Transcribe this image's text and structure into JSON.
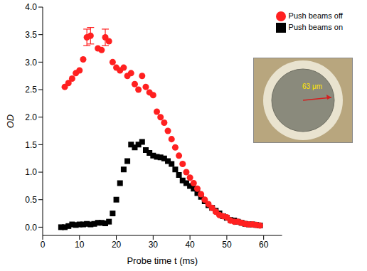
{
  "chart_data": {
    "type": "scatter",
    "x_label": "Probe time t (ms)",
    "y_label": "OD",
    "xlim": [
      0,
      65
    ],
    "xticks": [
      0,
      10,
      20,
      30,
      40,
      50,
      60
    ],
    "ylim": [
      -0.15,
      4.0
    ],
    "yticks": [
      {
        "value": 0,
        "label": "0.0"
      },
      {
        "value": 0.5,
        "label": "0.5"
      },
      {
        "value": 1,
        "label": "1.0"
      },
      {
        "value": 1.5,
        "label": "1.5"
      },
      {
        "value": 2,
        "label": "2.0"
      },
      {
        "value": 2.5,
        "label": "2.5"
      },
      {
        "value": 3,
        "label": "3.0"
      },
      {
        "value": 3.5,
        "label": "3.5"
      },
      {
        "value": 4,
        "label": "4.0"
      }
    ],
    "grid": false,
    "legend": "top-right",
    "annotations": [
      "63 μm"
    ],
    "series": [
      {
        "name": "Push beams on",
        "color": "#000000",
        "marker": "square",
        "x": [
          5,
          6,
          7,
          8,
          9,
          10,
          11,
          12,
          13,
          14,
          15,
          16,
          17,
          18,
          19,
          20,
          21,
          22,
          23,
          24,
          25,
          26,
          27,
          28,
          29,
          30,
          31,
          32,
          33,
          34,
          35,
          36,
          37,
          38,
          39,
          40,
          41,
          42,
          43,
          44,
          45,
          46,
          47,
          48,
          49,
          50,
          51,
          52,
          53,
          54,
          55,
          56,
          57,
          58,
          59
        ],
        "values": [
          0.0,
          0.0,
          0.02,
          0.05,
          0.04,
          0.05,
          0.05,
          0.06,
          0.05,
          0.06,
          0.08,
          0.08,
          0.07,
          0.1,
          0.25,
          0.5,
          0.8,
          1.05,
          1.2,
          1.5,
          1.45,
          1.5,
          1.55,
          1.4,
          1.35,
          1.3,
          1.28,
          1.27,
          1.25,
          1.2,
          1.15,
          1.05,
          0.95,
          0.85,
          0.8,
          0.75,
          0.7,
          0.62,
          0.55,
          0.47,
          0.4,
          0.35,
          0.3,
          0.25,
          0.2,
          0.17,
          0.13,
          0.12,
          0.1,
          0.08,
          0.06,
          0.05,
          0.05,
          0.04,
          0.03
        ]
      },
      {
        "name": "Push beams off",
        "color": "#ff2020",
        "marker": "circle",
        "x": [
          6,
          7,
          8,
          9,
          10,
          11,
          12,
          13,
          15,
          16,
          17,
          18,
          19,
          20,
          21,
          22,
          23,
          24,
          25,
          26,
          27,
          28,
          29,
          30,
          31,
          32,
          33,
          34,
          35,
          36,
          37,
          38,
          39,
          40,
          41,
          42,
          43,
          44,
          45,
          46,
          47,
          48,
          49,
          50,
          51,
          52,
          53,
          54,
          55,
          56,
          57,
          58,
          59
        ],
        "values": [
          2.55,
          2.62,
          2.7,
          2.8,
          2.85,
          3.05,
          3.45,
          3.48,
          3.25,
          3.22,
          3.45,
          3.38,
          3.0,
          2.9,
          2.85,
          2.9,
          2.75,
          2.8,
          2.6,
          2.5,
          2.75,
          2.55,
          2.45,
          2.4,
          2.1,
          2.0,
          1.9,
          1.75,
          1.6,
          1.45,
          1.3,
          1.15,
          1.0,
          0.9,
          0.8,
          0.7,
          0.6,
          0.5,
          0.42,
          0.35,
          0.28,
          0.22,
          0.2,
          0.18,
          0.12,
          0.1,
          0.1,
          0.08,
          0.06,
          0.05,
          0.05,
          0.04,
          0.03
        ],
        "errors": [
          null,
          null,
          null,
          null,
          null,
          null,
          0.15,
          0.15,
          null,
          null,
          0.15,
          null,
          null,
          null,
          null,
          null,
          null,
          null,
          null,
          null,
          null,
          null,
          null,
          null,
          null,
          null,
          null,
          null,
          null,
          null,
          null,
          null,
          null,
          null,
          null,
          null,
          null,
          null,
          null,
          null,
          null,
          null,
          null,
          null,
          null,
          null,
          null,
          null,
          null,
          null,
          null,
          null,
          null
        ]
      }
    ]
  }
}
